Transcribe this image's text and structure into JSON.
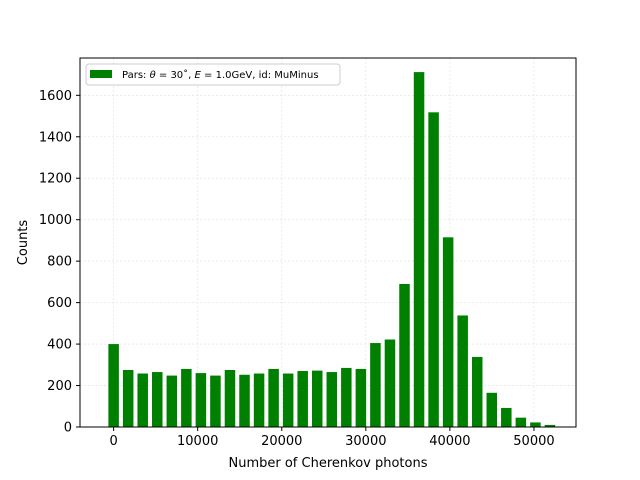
{
  "chart_data": {
    "type": "bar",
    "xlabel": "Number of Cherenkov photons",
    "ylabel": "Counts",
    "xlim": [
      -4000,
      55000
    ],
    "ylim": [
      0,
      1780
    ],
    "xticks": [
      0,
      10000,
      20000,
      30000,
      40000,
      50000
    ],
    "yticks": [
      0,
      200,
      400,
      600,
      800,
      1000,
      1200,
      1400,
      1600
    ],
    "grid": true,
    "legend_position": "upper-left",
    "bar_color": "#008000",
    "bar_width": 1250,
    "series": [
      {
        "legend_prefix": "Pars: ",
        "legend_theta": "θ",
        "legend_theta_value": " = 30˚, ",
        "legend_E": "E",
        "legend_E_value": " = 1.0GeV, id: MuMinus",
        "x": [
          0,
          1730,
          3460,
          5190,
          6920,
          8650,
          10380,
          12110,
          13840,
          15570,
          17300,
          19030,
          20760,
          22490,
          24220,
          25950,
          27680,
          29410,
          31140,
          32870,
          34600,
          36330,
          38060,
          39790,
          41520,
          43250,
          44980,
          46710,
          48440,
          50170,
          51900
        ],
        "values": [
          400,
          275,
          258,
          265,
          248,
          280,
          260,
          248,
          275,
          252,
          258,
          280,
          258,
          270,
          272,
          265,
          285,
          280,
          405,
          422,
          690,
          1712,
          1518,
          915,
          538,
          338,
          165,
          92,
          45,
          22,
          10
        ]
      }
    ]
  }
}
